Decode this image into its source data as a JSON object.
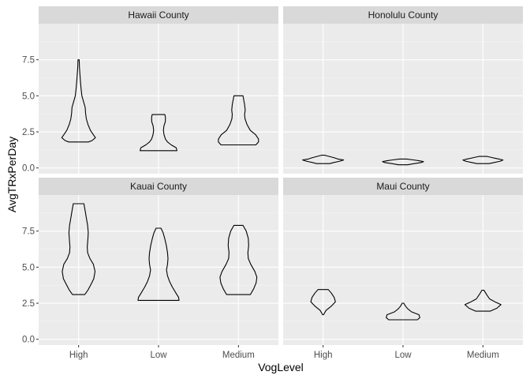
{
  "chart_data": {
    "type": "violin",
    "xlabel": "VogLevel",
    "ylabel": "AvgTRxPerDay",
    "categories": [
      "High",
      "Low",
      "Medium"
    ],
    "y_ticks": [
      0.0,
      2.5,
      5.0,
      7.5
    ],
    "y_tick_labels": [
      "0.0",
      "2.5",
      "5.0",
      "7.5"
    ],
    "ylim": [
      -0.4,
      10.0
    ],
    "grid": true,
    "legend": "none",
    "facets": [
      {
        "title": "Hawaii County",
        "violins": [
          {
            "category": "High",
            "profile": [
              [
                1.8,
                0.48
              ],
              [
                1.9,
                0.66
              ],
              [
                2.1,
                0.82
              ],
              [
                2.3,
                0.72
              ],
              [
                2.6,
                0.58
              ],
              [
                3.0,
                0.46
              ],
              [
                3.4,
                0.38
              ],
              [
                3.8,
                0.34
              ],
              [
                4.2,
                0.32
              ],
              [
                4.6,
                0.24
              ],
              [
                5.0,
                0.16
              ],
              [
                5.5,
                0.12
              ],
              [
                6.0,
                0.09
              ],
              [
                6.6,
                0.06
              ],
              [
                7.0,
                0.04
              ],
              [
                7.5,
                0.03
              ]
            ]
          },
          {
            "category": "Low",
            "profile": [
              [
                1.2,
                0.9
              ],
              [
                1.4,
                0.86
              ],
              [
                1.6,
                0.62
              ],
              [
                1.8,
                0.44
              ],
              [
                2.0,
                0.34
              ],
              [
                2.3,
                0.27
              ],
              [
                2.6,
                0.24
              ],
              [
                2.9,
                0.26
              ],
              [
                3.2,
                0.33
              ],
              [
                3.5,
                0.34
              ],
              [
                3.7,
                0.31
              ]
            ]
          },
          {
            "category": "Medium",
            "profile": [
              [
                1.6,
                0.85
              ],
              [
                1.8,
                0.98
              ],
              [
                2.0,
                0.98
              ],
              [
                2.3,
                0.84
              ],
              [
                2.6,
                0.58
              ],
              [
                3.0,
                0.42
              ],
              [
                3.4,
                0.32
              ],
              [
                3.7,
                0.3
              ],
              [
                4.0,
                0.33
              ],
              [
                4.4,
                0.3
              ],
              [
                4.7,
                0.26
              ],
              [
                5.0,
                0.22
              ]
            ]
          }
        ]
      },
      {
        "title": "Honolulu County",
        "violins": [
          {
            "category": "High",
            "profile": [
              [
                0.3,
                0.32
              ],
              [
                0.38,
                0.52
              ],
              [
                0.47,
                0.82
              ],
              [
                0.55,
                1.0
              ],
              [
                0.62,
                0.72
              ],
              [
                0.7,
                0.55
              ],
              [
                0.8,
                0.3
              ],
              [
                0.88,
                0.08
              ]
            ]
          },
          {
            "category": "Low",
            "profile": [
              [
                0.22,
                0.22
              ],
              [
                0.3,
                0.55
              ],
              [
                0.38,
                0.9
              ],
              [
                0.44,
                1.0
              ],
              [
                0.5,
                0.78
              ],
              [
                0.56,
                0.5
              ],
              [
                0.62,
                0.18
              ]
            ]
          },
          {
            "category": "Medium",
            "profile": [
              [
                0.3,
                0.3
              ],
              [
                0.38,
                0.55
              ],
              [
                0.47,
                0.85
              ],
              [
                0.55,
                0.98
              ],
              [
                0.62,
                0.78
              ],
              [
                0.7,
                0.5
              ],
              [
                0.8,
                0.2
              ]
            ]
          }
        ]
      },
      {
        "title": "Kauai County",
        "violins": [
          {
            "category": "High",
            "profile": [
              [
                3.1,
                0.3
              ],
              [
                3.4,
                0.45
              ],
              [
                3.8,
                0.6
              ],
              [
                4.2,
                0.74
              ],
              [
                4.7,
                0.8
              ],
              [
                5.2,
                0.72
              ],
              [
                5.6,
                0.55
              ],
              [
                6.0,
                0.44
              ],
              [
                6.4,
                0.42
              ],
              [
                6.9,
                0.45
              ],
              [
                7.4,
                0.47
              ],
              [
                7.9,
                0.44
              ],
              [
                8.4,
                0.38
              ],
              [
                8.9,
                0.32
              ],
              [
                9.4,
                0.26
              ]
            ]
          },
          {
            "category": "Low",
            "profile": [
              [
                2.7,
                1.0
              ],
              [
                2.9,
                0.98
              ],
              [
                3.2,
                0.85
              ],
              [
                3.6,
                0.68
              ],
              [
                4.0,
                0.54
              ],
              [
                4.4,
                0.44
              ],
              [
                4.8,
                0.39
              ],
              [
                5.2,
                0.44
              ],
              [
                5.6,
                0.46
              ],
              [
                6.0,
                0.44
              ],
              [
                6.5,
                0.38
              ],
              [
                7.0,
                0.3
              ],
              [
                7.4,
                0.22
              ],
              [
                7.7,
                0.12
              ]
            ]
          },
          {
            "category": "Medium",
            "profile": [
              [
                3.1,
                0.58
              ],
              [
                3.5,
                0.74
              ],
              [
                3.9,
                0.86
              ],
              [
                4.3,
                0.9
              ],
              [
                4.7,
                0.8
              ],
              [
                5.2,
                0.6
              ],
              [
                5.6,
                0.48
              ],
              [
                6.0,
                0.46
              ],
              [
                6.5,
                0.5
              ],
              [
                7.0,
                0.48
              ],
              [
                7.5,
                0.38
              ],
              [
                7.9,
                0.22
              ]
            ]
          }
        ]
      },
      {
        "title": "Maui County",
        "violins": [
          {
            "category": "High",
            "profile": [
              [
                1.7,
                0.02
              ],
              [
                2.0,
                0.14
              ],
              [
                2.3,
                0.4
              ],
              [
                2.6,
                0.6
              ],
              [
                2.9,
                0.54
              ],
              [
                3.2,
                0.4
              ],
              [
                3.45,
                0.25
              ]
            ]
          },
          {
            "category": "Low",
            "profile": [
              [
                1.35,
                0.7
              ],
              [
                1.5,
                0.82
              ],
              [
                1.7,
                0.78
              ],
              [
                1.9,
                0.42
              ],
              [
                2.1,
                0.24
              ],
              [
                2.3,
                0.12
              ],
              [
                2.5,
                0.04
              ]
            ]
          },
          {
            "category": "Medium",
            "profile": [
              [
                1.95,
                0.35
              ],
              [
                2.15,
                0.68
              ],
              [
                2.4,
                0.88
              ],
              [
                2.6,
                0.58
              ],
              [
                2.8,
                0.32
              ],
              [
                3.1,
                0.18
              ],
              [
                3.4,
                0.05
              ]
            ]
          }
        ]
      }
    ]
  }
}
